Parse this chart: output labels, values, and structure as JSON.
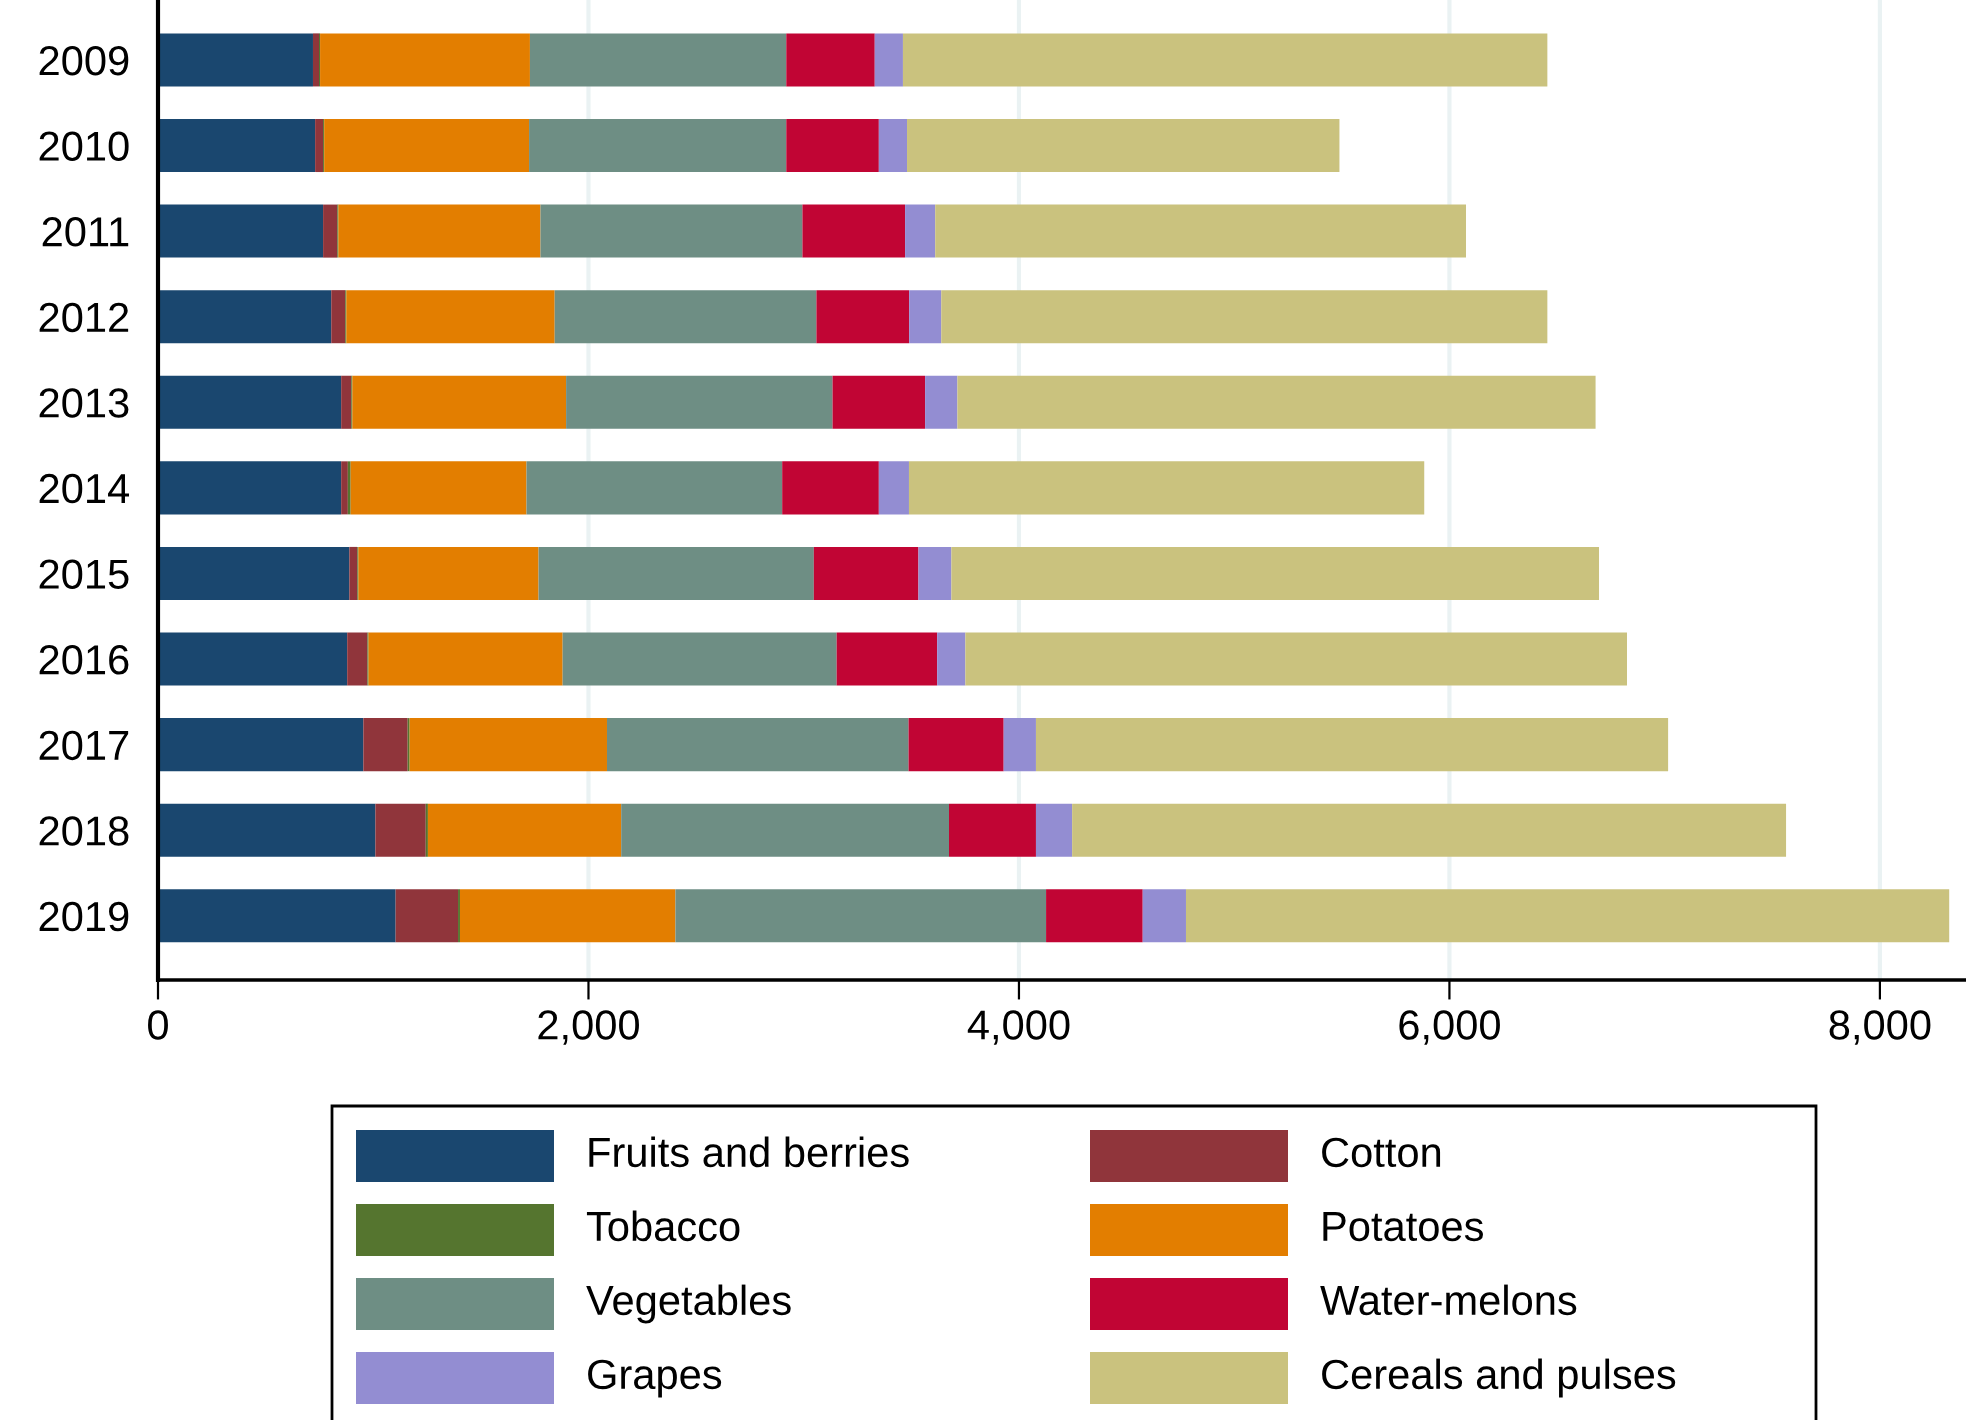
{
  "chart_data": {
    "type": "bar",
    "orientation": "horizontal",
    "stacked": true,
    "categories": [
      "2009",
      "2010",
      "2011",
      "2012",
      "2013",
      "2014",
      "2015",
      "2016",
      "2017",
      "2018",
      "2019"
    ],
    "series": [
      {
        "name": "Fruits and berries",
        "color": "#1a476f",
        "values": [
          720,
          730,
          767,
          805,
          851,
          851,
          889,
          879,
          954,
          1010,
          1104
        ]
      },
      {
        "name": "Cotton",
        "color": "#90353b",
        "values": [
          28,
          37,
          66,
          65,
          47,
          31,
          37,
          94,
          206,
          234,
          290
        ]
      },
      {
        "name": "Tobacco",
        "color": "#55752f",
        "values": [
          5,
          5,
          5,
          5,
          5,
          13,
          5,
          5,
          9,
          10,
          9
        ]
      },
      {
        "name": "Potatoes",
        "color": "#e37e00",
        "values": [
          975,
          952,
          939,
          968,
          993,
          817,
          837,
          902,
          917,
          898,
          1001
        ]
      },
      {
        "name": "Vegetables",
        "color": "#6e8e84",
        "values": [
          1191,
          1195,
          1217,
          1216,
          1238,
          1188,
          1279,
          1273,
          1401,
          1523,
          1722
        ]
      },
      {
        "name": "Water-melons",
        "color": "#c10534",
        "values": [
          411,
          430,
          477,
          431,
          430,
          449,
          486,
          467,
          442,
          404,
          449
        ]
      },
      {
        "name": "Grapes",
        "color": "#938dd2",
        "values": [
          131,
          131,
          140,
          149,
          150,
          140,
          153,
          131,
          150,
          168,
          201
        ]
      },
      {
        "name": "Cereals and pulses",
        "color": "#cac27e",
        "values": [
          2994,
          2009,
          2466,
          2816,
          2965,
          2394,
          3009,
          3074,
          2937,
          3317,
          3546
        ]
      }
    ],
    "xlim": [
      0,
      8400
    ],
    "xticks": [
      {
        "value": 0,
        "label": "0"
      },
      {
        "value": 2000,
        "label": "2,000"
      },
      {
        "value": 4000,
        "label": "4,000"
      },
      {
        "value": 6000,
        "label": "6,000"
      },
      {
        "value": 8000,
        "label": "8,000"
      }
    ],
    "grid": "x",
    "legend": "bottom"
  }
}
